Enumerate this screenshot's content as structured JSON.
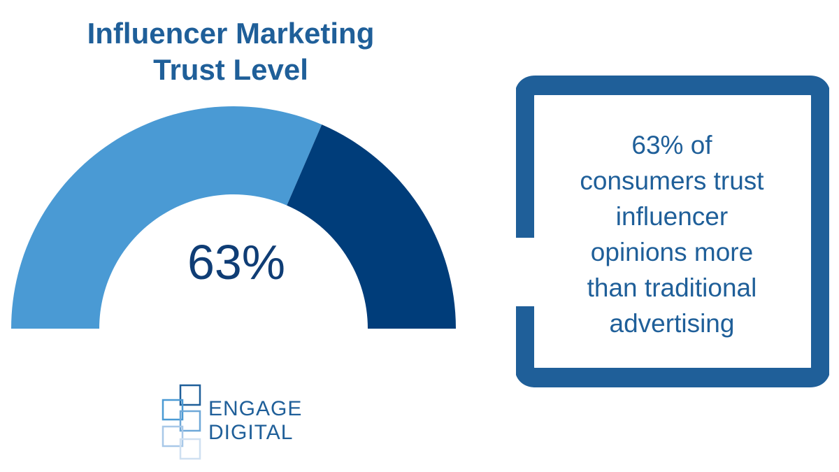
{
  "title": {
    "line1": "Influencer Marketing",
    "line2": "Trust Level"
  },
  "chart_data": {
    "type": "gauge",
    "value_percent": 63,
    "label": "63%",
    "segments": [
      {
        "value": 63,
        "color": "#4a9ad4"
      },
      {
        "value": 37,
        "color": "#003d7a"
      }
    ]
  },
  "callout": {
    "lines": [
      "63% of",
      "consumers trust",
      "influencer",
      "opinions more",
      "than traditional",
      "advertising"
    ],
    "frame_color": "#1f5f99"
  },
  "logo": {
    "line1": "ENGAGE",
    "line2": "DIGITAL"
  }
}
